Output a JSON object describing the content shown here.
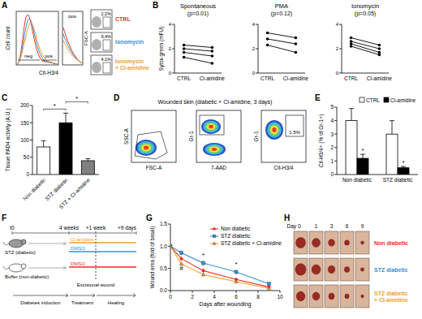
{
  "panel_labels": [
    "A",
    "B",
    "C",
    "D",
    "E",
    "F",
    "G",
    "H"
  ],
  "flow_a": {
    "y_label": "Cell count",
    "x_label": "Cit-H3/4",
    "gates": [
      "neg",
      "pos"
    ],
    "inset_label": "pos",
    "dot_y_label": "FSC-A",
    "samples": [
      {
        "lines": [
          "CTRL"
        ],
        "color": "#e8302a",
        "percent_label": "2.2%"
      },
      {
        "lines": [
          "Ionomycin"
        ],
        "color": "#3a8fd4",
        "percent_label": "9.4%"
      },
      {
        "lines": [
          "Ionomycin",
          "+ Cl-amidine"
        ],
        "color": "#f0a030",
        "percent_label": "4.1%"
      }
    ]
  },
  "chart_data": [
    {
      "type": "line",
      "title": "Spontaneous",
      "subtitle": "(p=0.01)",
      "y_label": "Sytox green (mFU)",
      "categories": [
        "CTRL",
        "Cl-amidine"
      ],
      "ylim": [
        0,
        4
      ],
      "yticks": [
        0,
        2,
        4
      ],
      "color": "#000000",
      "marker": "circle",
      "series": [
        {
          "values": [
            2.3,
            2.1
          ]
        },
        {
          "values": [
            2.0,
            1.8
          ]
        },
        {
          "values": [
            1.7,
            1.4
          ]
        },
        {
          "values": [
            1.3,
            0.8
          ]
        }
      ]
    },
    {
      "type": "line",
      "title": "PMA",
      "subtitle": "(p=0.12)",
      "categories": [
        "CTRL",
        "Cl-amidine"
      ],
      "ylim": [
        0,
        4
      ],
      "yticks": [
        0,
        2,
        4
      ],
      "color": "#000000",
      "marker": "circle",
      "series": [
        {
          "values": [
            3.3,
            2.9
          ]
        },
        {
          "values": [
            2.8,
            2.4
          ]
        },
        {
          "values": [
            2.3,
            1.7
          ]
        }
      ]
    },
    {
      "type": "line",
      "title": "Ionomycin",
      "subtitle": "(p=0.05)",
      "categories": [
        "CTRL",
        "Cl-amidine"
      ],
      "ylim": [
        0,
        4
      ],
      "yticks": [
        0,
        2,
        4
      ],
      "color": "#000000",
      "marker": "circle",
      "series": [
        {
          "values": [
            2.9,
            2.3
          ]
        },
        {
          "values": [
            2.6,
            2.0
          ]
        },
        {
          "values": [
            2.4,
            1.7
          ]
        },
        {
          "values": [
            2.2,
            1.5
          ]
        }
      ]
    },
    {
      "type": "bar",
      "y_label": "Tissue PAD4 activity (A.U.)",
      "categories": [
        "Non diabetic",
        "STZ diabetic",
        "STZ + Cl-amidine"
      ],
      "values": [
        80,
        150,
        40
      ],
      "errors": [
        18,
        28,
        6
      ],
      "colors": [
        "#ffffff",
        "#000000",
        "#808080"
      ],
      "ylim": [
        0,
        200
      ],
      "yticks": [
        0,
        50,
        100,
        150,
        200
      ],
      "annotations": [
        {
          "text": "*",
          "between": [
            0,
            1
          ]
        },
        {
          "text": "*",
          "between": [
            1,
            2
          ]
        }
      ]
    },
    {
      "type": "bar",
      "y_label": "Cit-H3/4+ (% of Gr-1+)",
      "categories": [
        "Non diabetic",
        "STZ diabetic"
      ],
      "series": [
        {
          "name": "CTRL",
          "color": "#ffffff",
          "values": [
            4.0,
            3.0
          ],
          "errors": [
            0.9,
            1.0
          ]
        },
        {
          "name": "Cl-amidine",
          "color": "#000000",
          "values": [
            1.2,
            0.5
          ],
          "errors": [
            0.3,
            0.1
          ],
          "annotations": [
            "*",
            "*"
          ]
        }
      ],
      "ylim": [
        0,
        5
      ],
      "yticks": [
        0,
        1,
        2,
        3,
        4,
        5
      ],
      "legend": "top-right"
    },
    {
      "type": "line",
      "x_label": "Days after wounding",
      "y_label": "Wound area (fold of basal)",
      "x": [
        0,
        1,
        3,
        6,
        9
      ],
      "xlim": [
        0,
        10
      ],
      "xticks": [
        0,
        2,
        4,
        6,
        8,
        10
      ],
      "ylim": [
        0,
        1.5
      ],
      "yticks": [
        {
          "value": 0,
          "label": "0.0"
        },
        {
          "value": 0.5,
          "label": "0.5"
        },
        {
          "value": 1,
          "label": "1.0"
        },
        {
          "value": 1.5,
          "label": "1.5"
        }
      ],
      "legend": "top-right",
      "series": [
        {
          "name": "Non diabetic",
          "color": "#e8302a",
          "marker": "circle",
          "values": [
            1,
            0.72,
            0.45,
            0.25,
            0.08
          ],
          "errors": [
            0,
            0.05,
            0.05,
            0.04,
            0.03
          ]
        },
        {
          "name": "STZ diabetic",
          "color": "#3a8fd4",
          "marker": "square",
          "values": [
            1,
            0.85,
            0.62,
            0.42,
            0.15
          ],
          "errors": [
            0,
            0.05,
            0.06,
            0.05,
            0.04
          ]
        },
        {
          "name": "STZ diabetic + Cl-amidine",
          "color": "#f0a030",
          "marker": "triangle",
          "values": [
            1,
            0.6,
            0.36,
            0.2,
            0.05
          ],
          "errors": [
            0,
            0.05,
            0.05,
            0.04,
            0.02
          ]
        }
      ],
      "annotations": [
        {
          "text": "#",
          "x": 1,
          "y": 0.45
        },
        {
          "text": "*",
          "x": 3,
          "y": 0.75
        },
        {
          "text": "*",
          "x": 6,
          "y": 0.55
        }
      ]
    }
  ],
  "flow_d": {
    "title": "Wounded skin (diabetic + Cl-amidine, 3 days)",
    "plots": [
      {
        "x_label": "FSC-A",
        "y_label": "SSC-A"
      },
      {
        "x_label": "7-AAD",
        "y_label": "Gr-1"
      },
      {
        "x_label": "Cit-H3/4",
        "y_label": "Gr-1",
        "gate_label": "1.5%"
      }
    ]
  },
  "scheme_f": {
    "start": "t0",
    "marks": [
      "4 weeks",
      "+1 week",
      "+9 days"
    ],
    "groups": [
      {
        "label": "STZ (diabetic)",
        "fill": "#9a9a9a",
        "treatments": [
          {
            "label": "Cl-amidine",
            "color": "#f0a030"
          },
          {
            "label": "DMSO",
            "color": "#3a8fd4"
          }
        ]
      },
      {
        "label": "Buffer (non-diabetic)",
        "fill": "#ffffff",
        "treatments": [
          {
            "label": "DMSO",
            "color": "#e8302a"
          }
        ]
      }
    ],
    "event": "Excisional wound",
    "phases": [
      "Diabetes induction",
      "Treatment",
      "Healing"
    ]
  },
  "photos_h": {
    "headers": [
      "Day 0",
      "1",
      "3",
      "6",
      "9"
    ],
    "rows": [
      {
        "lines": [
          "Non diabetic"
        ],
        "color": "#e8302a"
      },
      {
        "lines": [
          "STZ diabetic"
        ],
        "color": "#3a8fd4"
      },
      {
        "lines": [
          "STZ diabetic",
          "+ Cl-amidine"
        ],
        "color": "#f0a030"
      }
    ]
  }
}
